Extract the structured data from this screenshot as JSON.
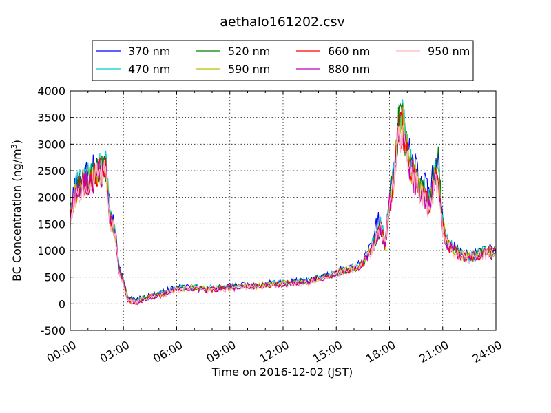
{
  "chart_data": {
    "type": "line",
    "title": "aethalo161202.csv",
    "xlabel": "Time on 2016-12-02 (JST)",
    "ylabel": "BC Concentration (ng/m",
    "ylabel_sup": "3",
    "ylabel_end": ")",
    "xlim": [
      "00:00",
      "24:00"
    ],
    "ylim": [
      -500,
      4000
    ],
    "x_ticks": [
      "00:00",
      "03:00",
      "06:00",
      "09:00",
      "12:00",
      "15:00",
      "18:00",
      "21:00",
      "24:00"
    ],
    "y_ticks": [
      "-500",
      "0",
      "500",
      "1000",
      "1500",
      "2000",
      "2500",
      "3000",
      "3500",
      "4000"
    ],
    "grid": true,
    "legend_position": "top",
    "x_hours": [
      0,
      0.25,
      0.5,
      0.75,
      1,
      1.25,
      1.5,
      1.75,
      2,
      2.25,
      2.5,
      2.75,
      3,
      3.25,
      3.5,
      3.75,
      4,
      4.5,
      5,
      5.5,
      6,
      6.5,
      7,
      7.5,
      8,
      8.5,
      9,
      9.5,
      10,
      10.5,
      11,
      11.5,
      12,
      12.5,
      13,
      13.5,
      14,
      14.5,
      15,
      15.5,
      16,
      16.5,
      17,
      17.25,
      17.5,
      17.75,
      18,
      18.25,
      18.5,
      18.75,
      19,
      19.25,
      19.5,
      19.75,
      20,
      20.25,
      20.5,
      20.75,
      21,
      21.25,
      21.5,
      22,
      22.5,
      23,
      23.5,
      24
    ],
    "series": [
      {
        "name": "370 nm",
        "color": "#0000ff",
        "values": [
          1700,
          2200,
          2300,
          2400,
          2450,
          2500,
          2550,
          2600,
          2700,
          1700,
          1500,
          700,
          450,
          100,
          80,
          60,
          100,
          150,
          180,
          250,
          300,
          320,
          330,
          300,
          310,
          320,
          330,
          340,
          360,
          350,
          380,
          390,
          400,
          420,
          420,
          450,
          500,
          550,
          600,
          650,
          700,
          800,
          1100,
          1500,
          1600,
          1200,
          2000,
          2500,
          3500,
          3800,
          3000,
          2600,
          2500,
          2300,
          2200,
          2000,
          2500,
          2600,
          1600,
          1200,
          1100,
          950,
          900,
          950,
          1000,
          1000
        ]
      },
      {
        "name": "470 nm",
        "color": "#00cccc",
        "values": [
          1650,
          2150,
          2250,
          2350,
          2400,
          2450,
          2500,
          2550,
          2650,
          1650,
          1480,
          680,
          440,
          90,
          70,
          50,
          95,
          140,
          170,
          240,
          290,
          310,
          320,
          290,
          300,
          310,
          320,
          330,
          350,
          340,
          370,
          380,
          390,
          410,
          410,
          440,
          490,
          540,
          590,
          640,
          690,
          790,
          1080,
          1300,
          1500,
          1150,
          1950,
          2450,
          3400,
          3600,
          2950,
          2550,
          2450,
          2250,
          2150,
          1950,
          2400,
          2450,
          1550,
          1180,
          1080,
          940,
          890,
          940,
          990,
          990
        ]
      },
      {
        "name": "520 nm",
        "color": "#008000",
        "values": [
          1600,
          2100,
          2200,
          2300,
          2350,
          2400,
          2450,
          2500,
          2600,
          1600,
          1450,
          650,
          420,
          80,
          60,
          40,
          90,
          130,
          160,
          230,
          280,
          300,
          310,
          280,
          290,
          300,
          310,
          320,
          340,
          330,
          360,
          370,
          380,
          400,
          400,
          430,
          480,
          530,
          580,
          630,
          680,
          780,
          1050,
          1250,
          1450,
          1100,
          1900,
          2400,
          3300,
          3400,
          2900,
          2500,
          2400,
          2200,
          2100,
          1900,
          2300,
          2700,
          1500,
          1150,
          1050,
          930,
          880,
          930,
          980,
          980
        ]
      },
      {
        "name": "590 nm",
        "color": "#bfbf00",
        "values": [
          1580,
          2080,
          2180,
          2280,
          2330,
          2380,
          2430,
          2480,
          2580,
          1580,
          1430,
          640,
          410,
          75,
          55,
          35,
          85,
          125,
          155,
          225,
          275,
          295,
          305,
          275,
          285,
          295,
          305,
          315,
          335,
          325,
          355,
          365,
          375,
          395,
          395,
          425,
          475,
          525,
          575,
          625,
          675,
          770,
          1040,
          1240,
          1440,
          1090,
          1880,
          2380,
          3280,
          3380,
          2880,
          2480,
          2380,
          2180,
          2080,
          1880,
          2280,
          2500,
          1480,
          1140,
          1040,
          920,
          870,
          920,
          970,
          970
        ]
      },
      {
        "name": "660 nm",
        "color": "#ff0000",
        "values": [
          1560,
          2060,
          2160,
          2260,
          2310,
          2360,
          2410,
          2460,
          2560,
          1560,
          1410,
          630,
          400,
          70,
          50,
          30,
          80,
          120,
          150,
          220,
          270,
          290,
          300,
          270,
          280,
          290,
          300,
          310,
          330,
          320,
          350,
          360,
          370,
          390,
          390,
          420,
          470,
          520,
          570,
          620,
          670,
          760,
          1030,
          1230,
          1430,
          1080,
          1860,
          2360,
          3250,
          3350,
          2850,
          2450,
          2350,
          2150,
          2050,
          1850,
          2250,
          2400,
          1450,
          1130,
          1030,
          910,
          860,
          910,
          960,
          960
        ]
      },
      {
        "name": "880 nm",
        "color": "#bf00bf",
        "values": [
          1540,
          2040,
          2140,
          2240,
          2290,
          2340,
          2390,
          2440,
          2540,
          1540,
          1390,
          620,
          390,
          65,
          45,
          25,
          75,
          115,
          145,
          215,
          265,
          285,
          295,
          265,
          275,
          285,
          295,
          305,
          325,
          315,
          345,
          355,
          365,
          385,
          385,
          415,
          465,
          515,
          565,
          615,
          665,
          750,
          1020,
          1220,
          1420,
          1070,
          1840,
          2340,
          3200,
          3300,
          2800,
          2400,
          2300,
          2100,
          2000,
          1800,
          2200,
          2350,
          1400,
          1120,
          1020,
          900,
          850,
          900,
          950,
          950
        ]
      },
      {
        "name": "950 nm",
        "color": "#ffb6c1",
        "values": [
          1520,
          2020,
          2120,
          2220,
          2270,
          2320,
          2370,
          2420,
          2520,
          1520,
          1370,
          610,
          380,
          60,
          40,
          20,
          70,
          110,
          140,
          210,
          260,
          280,
          290,
          260,
          270,
          280,
          290,
          300,
          320,
          310,
          340,
          350,
          360,
          380,
          380,
          410,
          460,
          510,
          560,
          610,
          660,
          740,
          1010,
          1210,
          1410,
          1060,
          1820,
          2320,
          3150,
          3250,
          2750,
          2350,
          2250,
          2050,
          1950,
          1750,
          2150,
          2300,
          1350,
          1110,
          1010,
          890,
          840,
          890,
          940,
          940
        ]
      }
    ]
  }
}
